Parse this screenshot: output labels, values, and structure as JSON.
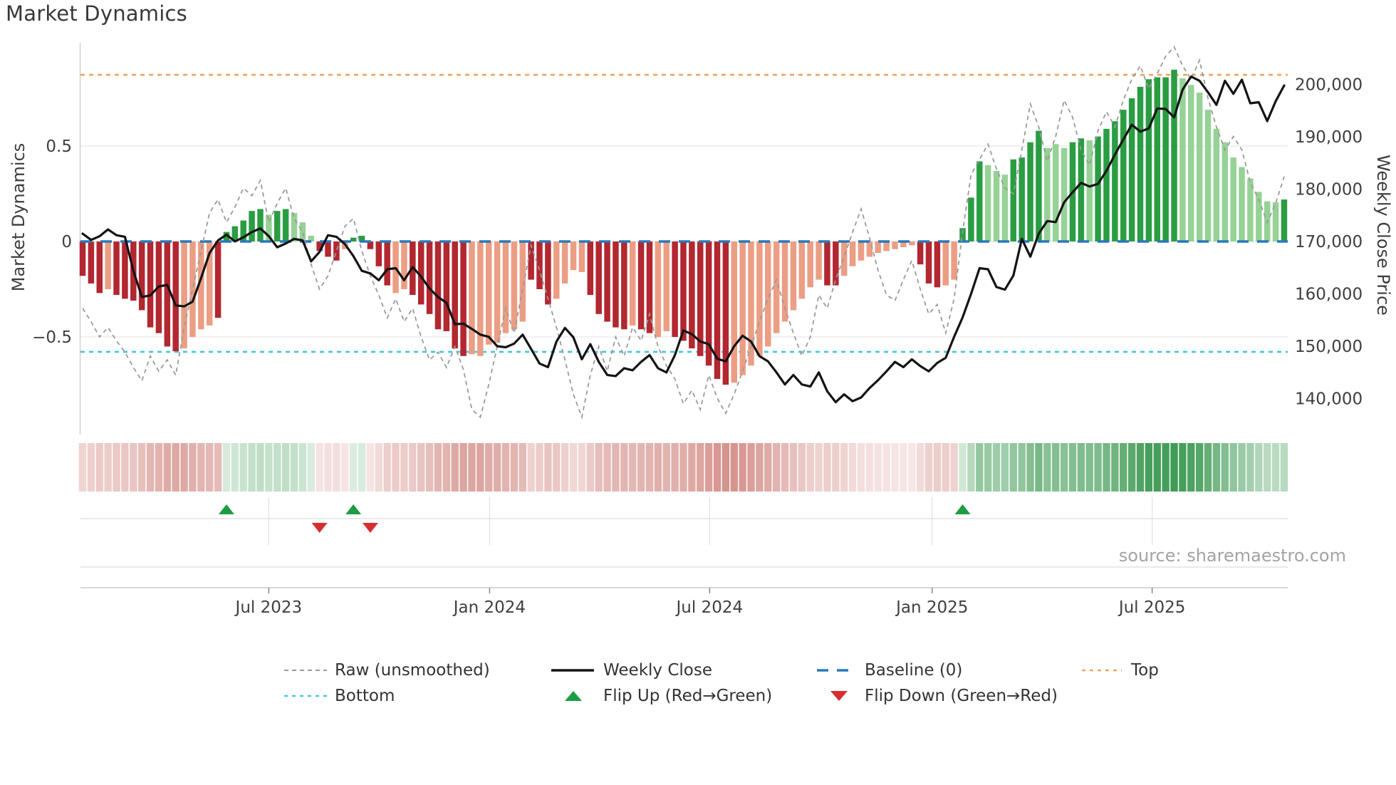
{
  "title": "Market Dynamics",
  "source": "source: sharemaestro.com",
  "axes": {
    "left_label": "Market Dynamics",
    "right_label": "Weekly Close Price",
    "left_ticks": [
      {
        "label": "0.5",
        "value": 0.5
      },
      {
        "label": "0",
        "value": 0
      },
      {
        "label": "−0.5",
        "value": -0.5
      }
    ],
    "right_ticks": [
      {
        "label": "200,000",
        "value": 200000
      },
      {
        "label": "190,000",
        "value": 190000
      },
      {
        "label": "180,000",
        "value": 180000
      },
      {
        "label": "170,000",
        "value": 170000
      },
      {
        "label": "160,000",
        "value": 160000
      },
      {
        "label": "150,000",
        "value": 150000
      },
      {
        "label": "140,000",
        "value": 140000
      }
    ],
    "x_ticks": [
      {
        "label": "Jul 2023",
        "week": 22
      },
      {
        "label": "Jan 2024",
        "week": 48.1
      },
      {
        "label": "Jul 2024",
        "week": 74.1
      },
      {
        "label": "Jan 2025",
        "week": 100.4
      },
      {
        "label": "Jul 2025",
        "week": 126.4
      }
    ]
  },
  "legend": {
    "items": [
      {
        "label": "Raw (unsmoothed)",
        "swatch": "gray-dashed-line"
      },
      {
        "label": "Weekly Close",
        "swatch": "black-solid-line"
      },
      {
        "label": "Baseline (0)",
        "swatch": "blue-dashed-line"
      },
      {
        "label": "Top",
        "swatch": "orange-dotted-line"
      },
      {
        "label": "Bottom",
        "swatch": "cyan-dotted-line"
      },
      {
        "label": "Flip Up (Red→Green)",
        "swatch": "green-up-triangle"
      },
      {
        "label": "Flip Down (Green→Red)",
        "swatch": "red-down-triangle"
      }
    ]
  },
  "colors": {
    "bar_dark_red": "#b22730",
    "bar_light_red": "#eb9e84",
    "bar_dark_green": "#2a9d43",
    "bar_light_green": "#96d296",
    "close_line": "#141414",
    "raw_line": "#9a9a9a",
    "baseline": "#2878b8",
    "top_line": "#f2a35e",
    "bottom_line": "#41c7e0",
    "flip_up": "#1e9c43",
    "flip_down": "#d62e2e",
    "grid": "#e7e7e7",
    "panel_grid": "#dcdcdc",
    "axis_line": "#c9c9c9",
    "tick_text": "#3f3f3f",
    "heat_red_rgb": [
      184,
      70,
      60
    ],
    "heat_green_rgb": [
      35,
      140,
      60
    ]
  },
  "chart_data": {
    "type": "bar",
    "subtype": "bar+line+heatmap",
    "title": "Market Dynamics",
    "x_start_date": "2023-01-30",
    "frequency": "weekly",
    "n_weeks": 143,
    "ylim_left": [
      -1.01,
      1.04
    ],
    "ylim_right": [
      133100,
      207960
    ],
    "baseline": 0,
    "top": 0.873,
    "bottom": -0.578,
    "grid": true,
    "legend_position": "bottom",
    "values": [
      -0.18,
      -0.22,
      -0.27,
      -0.25,
      -0.28,
      -0.3,
      -0.31,
      -0.36,
      -0.45,
      -0.48,
      -0.55,
      -0.575,
      -0.56,
      -0.5,
      -0.46,
      -0.44,
      -0.4,
      0.05,
      0.08,
      0.11,
      0.16,
      0.17,
      0.14,
      0.16,
      0.17,
      0.15,
      0.1,
      0.03,
      -0.05,
      -0.08,
      -0.1,
      -0.04,
      0.02,
      0.03,
      -0.04,
      -0.13,
      -0.23,
      -0.27,
      -0.25,
      -0.28,
      -0.33,
      -0.38,
      -0.46,
      -0.47,
      -0.56,
      -0.6,
      -0.59,
      -0.6,
      -0.54,
      -0.53,
      -0.48,
      -0.46,
      -0.42,
      -0.2,
      -0.25,
      -0.33,
      -0.3,
      -0.22,
      -0.15,
      -0.16,
      -0.28,
      -0.38,
      -0.42,
      -0.45,
      -0.46,
      -0.44,
      -0.46,
      -0.48,
      -0.5,
      -0.47,
      -0.5,
      -0.52,
      -0.56,
      -0.6,
      -0.65,
      -0.72,
      -0.75,
      -0.74,
      -0.7,
      -0.65,
      -0.6,
      -0.55,
      -0.48,
      -0.42,
      -0.36,
      -0.3,
      -0.24,
      -0.2,
      -0.23,
      -0.23,
      -0.18,
      -0.13,
      -0.1,
      -0.08,
      -0.06,
      -0.05,
      -0.04,
      -0.03,
      -0.02,
      -0.12,
      -0.22,
      -0.24,
      -0.23,
      -0.2,
      0.07,
      0.23,
      0.42,
      0.4,
      0.37,
      0.35,
      0.43,
      0.44,
      0.52,
      0.58,
      0.49,
      0.51,
      0.49,
      0.52,
      0.54,
      0.53,
      0.55,
      0.59,
      0.63,
      0.69,
      0.75,
      0.81,
      0.85,
      0.86,
      0.86,
      0.9,
      0.855,
      0.82,
      0.78,
      0.69,
      0.59,
      0.52,
      0.44,
      0.39,
      0.33,
      0.26,
      0.21,
      0.205,
      0.22
    ],
    "bar_shades": "dddldddddddd llll d dddddlddlll dddl dd dddlldddddddll lllll dddlll ldddddl ddll ddddddd lllllllllll dd lllllllll dddll dddllldddd lllddl dddddddddd llllllllllll d",
    "raw": [
      -0.35,
      -0.42,
      -0.5,
      -0.45,
      -0.52,
      -0.58,
      -0.66,
      -0.73,
      -0.6,
      -0.68,
      -0.62,
      -0.7,
      -0.45,
      -0.25,
      -0.05,
      0.15,
      0.22,
      0.1,
      0.18,
      0.28,
      0.24,
      0.32,
      0.1,
      0.2,
      0.28,
      0.12,
      0.05,
      -0.12,
      -0.25,
      -0.18,
      -0.05,
      0.08,
      0.12,
      -0.05,
      -0.18,
      -0.28,
      -0.4,
      -0.3,
      -0.42,
      -0.35,
      -0.5,
      -0.62,
      -0.58,
      -0.66,
      -0.55,
      -0.67,
      -0.88,
      -0.92,
      -0.75,
      -0.55,
      -0.35,
      -0.48,
      -0.25,
      -0.02,
      -0.15,
      -0.3,
      -0.45,
      -0.62,
      -0.8,
      -0.92,
      -0.7,
      -0.55,
      -0.68,
      -0.5,
      -0.6,
      -0.45,
      -0.52,
      -0.38,
      -0.55,
      -0.65,
      -0.72,
      -0.85,
      -0.78,
      -0.88,
      -0.7,
      -0.82,
      -0.9,
      -0.8,
      -0.68,
      -0.55,
      -0.42,
      -0.3,
      -0.2,
      -0.35,
      -0.48,
      -0.6,
      -0.5,
      -0.28,
      -0.35,
      -0.2,
      -0.08,
      0.05,
      0.17,
      0.02,
      -0.15,
      -0.28,
      -0.31,
      -0.2,
      -0.1,
      -0.25,
      -0.38,
      -0.33,
      -0.48,
      -0.3,
      0.05,
      0.35,
      0.43,
      0.51,
      0.38,
      0.28,
      0.25,
      0.48,
      0.72,
      0.6,
      0.42,
      0.55,
      0.74,
      0.65,
      0.48,
      0.4,
      0.58,
      0.68,
      0.6,
      0.74,
      0.85,
      0.92,
      0.8,
      0.88,
      0.97,
      1.02,
      0.92,
      0.85,
      0.95,
      0.75,
      0.6,
      0.48,
      0.55,
      0.48,
      0.31,
      0.22,
      0.1,
      0.2,
      0.34
    ],
    "close": [
      171500,
      170300,
      171000,
      172300,
      171200,
      170900,
      164400,
      159400,
      159700,
      161400,
      161700,
      157800,
      157600,
      158500,
      163000,
      167800,
      170200,
      171300,
      170000,
      170800,
      171800,
      172500,
      171000,
      168900,
      169600,
      170500,
      170200,
      166200,
      168000,
      171200,
      170900,
      169500,
      167200,
      164400,
      163900,
      162600,
      164700,
      164900,
      162600,
      165100,
      163300,
      161000,
      159400,
      158300,
      154200,
      154300,
      153300,
      152200,
      151800,
      150000,
      149800,
      150500,
      152200,
      149500,
      146700,
      146000,
      150900,
      153500,
      151700,
      147500,
      150400,
      147000,
      144500,
      144300,
      145800,
      145400,
      147000,
      148300,
      145800,
      145000,
      148300,
      153000,
      152300,
      150900,
      150400,
      147600,
      147100,
      150000,
      152000,
      150900,
      148100,
      147100,
      145000,
      142700,
      144500,
      142700,
      142300,
      145000,
      141400,
      139300,
      140800,
      139500,
      140200,
      142000,
      143500,
      145200,
      147000,
      146000,
      147500,
      146200,
      145200,
      146800,
      147800,
      151800,
      155500,
      160000,
      164900,
      164700,
      161300,
      160800,
      163500,
      170500,
      167100,
      171500,
      173900,
      173700,
      177500,
      179400,
      181200,
      180500,
      181000,
      183500,
      186600,
      189500,
      192300,
      191000,
      191600,
      195400,
      195300,
      193700,
      199000,
      201500,
      200700,
      198500,
      196100,
      200700,
      198200,
      200900,
      196400,
      196600,
      193000,
      196800,
      199800
    ],
    "flip_up_weeks": [
      17,
      32,
      104
    ],
    "flip_up_dates": [
      "2023-05-29",
      "2023-09-11",
      "2025-01-27"
    ],
    "flip_down_weeks": [
      28,
      34
    ],
    "flip_down_dates": [
      "2023-08-14",
      "2023-09-25"
    ]
  }
}
